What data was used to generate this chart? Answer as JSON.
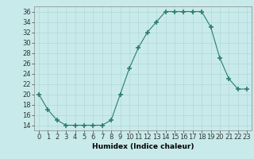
{
  "x": [
    0,
    1,
    2,
    3,
    4,
    5,
    6,
    7,
    8,
    9,
    10,
    11,
    12,
    13,
    14,
    15,
    16,
    17,
    18,
    19,
    20,
    21,
    22,
    23
  ],
  "y": [
    20,
    17,
    15,
    14,
    14,
    14,
    14,
    14,
    15,
    20,
    25,
    29,
    32,
    34,
    36,
    36,
    36,
    36,
    36,
    33,
    27,
    23,
    21,
    21
  ],
  "line_color": "#2e7d6e",
  "marker_color": "#2e7d6e",
  "bg_color": "#c8eaea",
  "grid_color": "#b0d8d8",
  "xlabel": "Humidex (Indice chaleur)",
  "ylim": [
    13,
    37
  ],
  "xlim": [
    -0.5,
    23.5
  ],
  "yticks": [
    14,
    16,
    18,
    20,
    22,
    24,
    26,
    28,
    30,
    32,
    34,
    36
  ],
  "xticks": [
    0,
    1,
    2,
    3,
    4,
    5,
    6,
    7,
    8,
    9,
    10,
    11,
    12,
    13,
    14,
    15,
    16,
    17,
    18,
    19,
    20,
    21,
    22,
    23
  ],
  "xtick_labels": [
    "0",
    "1",
    "2",
    "3",
    "4",
    "5",
    "6",
    "7",
    "8",
    "9",
    "10",
    "11",
    "12",
    "13",
    "14",
    "15",
    "16",
    "17",
    "18",
    "19",
    "20",
    "21",
    "22",
    "23"
  ],
  "label_fontsize": 6.5,
  "tick_fontsize": 6
}
